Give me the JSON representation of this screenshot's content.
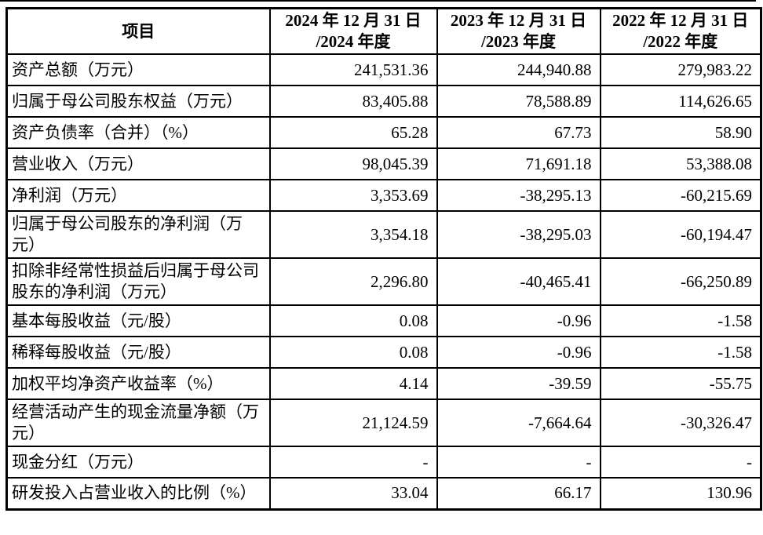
{
  "page": {
    "background": "#ffffff",
    "text_color": "#000000",
    "border_color": "#000000"
  },
  "table": {
    "columns": [
      {
        "id": "item",
        "header_lines": [
          "项目",
          ""
        ]
      },
      {
        "id": "y2024",
        "header_lines": [
          "2024 年 12 月 31 日",
          "/2024 年度"
        ]
      },
      {
        "id": "y2023",
        "header_lines": [
          "2023 年 12 月 31 日",
          "/2023 年度"
        ]
      },
      {
        "id": "y2022",
        "header_lines": [
          "2022 年 12 月 31 日",
          "/2022 年度"
        ]
      }
    ],
    "rows": [
      {
        "label": "资产总额（万元）",
        "values": [
          "241,531.36",
          "244,940.88",
          "279,983.22"
        ],
        "tall": false
      },
      {
        "label": "归属于母公司股东权益（万元）",
        "values": [
          "83,405.88",
          "78,588.89",
          "114,626.65"
        ],
        "tall": false
      },
      {
        "label": "资产负债率（合并）（%）",
        "values": [
          "65.28",
          "67.73",
          "58.90"
        ],
        "tall": false
      },
      {
        "label": "营业收入（万元）",
        "values": [
          "98,045.39",
          "71,691.18",
          "53,388.08"
        ],
        "tall": false
      },
      {
        "label": "净利润（万元）",
        "values": [
          "3,353.69",
          "-38,295.13",
          "-60,215.69"
        ],
        "tall": false
      },
      {
        "label": "归属于母公司股东的净利润（万元）",
        "values": [
          "3,354.18",
          "-38,295.03",
          "-60,194.47"
        ],
        "tall": true
      },
      {
        "label": "扣除非经常性损益后归属于母公司股东的净利润（万元）",
        "values": [
          "2,296.80",
          "-40,465.41",
          "-66,250.89"
        ],
        "tall": true
      },
      {
        "label": "基本每股收益（元/股）",
        "values": [
          "0.08",
          "-0.96",
          "-1.58"
        ],
        "tall": false
      },
      {
        "label": "稀释每股收益（元/股）",
        "values": [
          "0.08",
          "-0.96",
          "-1.58"
        ],
        "tall": false
      },
      {
        "label": "加权平均净资产收益率（%）",
        "values": [
          "4.14",
          "-39.59",
          "-55.75"
        ],
        "tall": false
      },
      {
        "label": "经营活动产生的现金流量净额（万元）",
        "values": [
          "21,124.59",
          "-7,664.64",
          "-30,326.47"
        ],
        "tall": true
      },
      {
        "label": "现金分红（万元）",
        "values": [
          "-",
          "-",
          "-"
        ],
        "tall": false
      },
      {
        "label": "研发投入占营业收入的比例（%）",
        "values": [
          "33.04",
          "66.17",
          "130.96"
        ],
        "tall": false
      }
    ]
  }
}
